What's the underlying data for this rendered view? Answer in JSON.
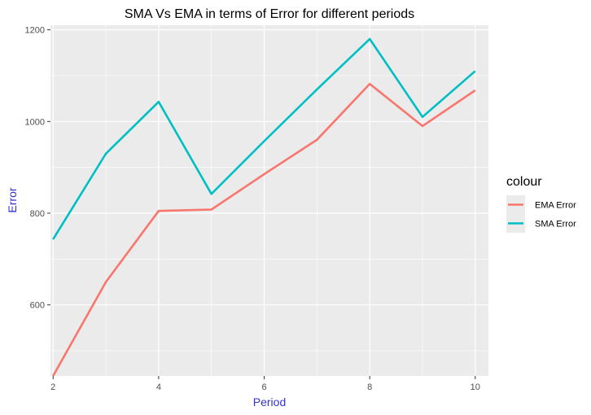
{
  "chart_data": {
    "type": "line",
    "title": "SMA Vs EMA in terms of Error for different periods",
    "xlabel": "Period",
    "ylabel": "Error",
    "axis_title_color": "#3333cc",
    "panel_background": "#ebebeb",
    "xlim": [
      1.95,
      10.25
    ],
    "ylim": [
      445,
      1210
    ],
    "x_ticks": [
      2,
      4,
      6,
      8,
      10
    ],
    "y_ticks": [
      600,
      800,
      1000,
      1200
    ],
    "x": [
      2,
      3,
      4,
      5,
      6,
      7,
      8,
      9,
      10
    ],
    "series": [
      {
        "name": "EMA Error",
        "color": "#f8766d",
        "values": [
          445,
          650,
          805,
          808,
          885,
          960,
          1082,
          990,
          1068
        ]
      },
      {
        "name": "SMA Error",
        "color": "#00bfc4",
        "values": [
          743,
          930,
          1043,
          842,
          957,
          1070,
          1180,
          1010,
          1110
        ]
      }
    ],
    "grid": true,
    "legend": {
      "title": "colour",
      "position": "right"
    }
  }
}
